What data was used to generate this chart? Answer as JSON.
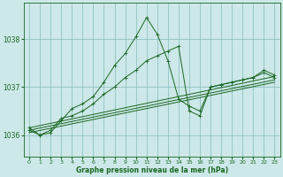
{
  "title": "Graphe pression niveau de la mer (hPa)",
  "background_color": "#cce8e8",
  "plot_bg_color": "#cce8e8",
  "grid_color": "#88bbbb",
  "line_color": "#1a6622",
  "xlim": [
    -0.5,
    23.5
  ],
  "ylim": [
    1035.55,
    1038.75
  ],
  "yticks": [
    1036,
    1037,
    1038
  ],
  "xticks": [
    0,
    1,
    2,
    3,
    4,
    5,
    6,
    7,
    8,
    9,
    10,
    11,
    12,
    13,
    14,
    15,
    16,
    17,
    18,
    19,
    20,
    21,
    22,
    23
  ],
  "series1_x": [
    0,
    1,
    2,
    3,
    4,
    5,
    6,
    7,
    8,
    9,
    10,
    11,
    12,
    13,
    14,
    15,
    16,
    17,
    18,
    19,
    20,
    21,
    22,
    23
  ],
  "series1_y": [
    1036.15,
    1036.0,
    1036.05,
    1036.3,
    1036.55,
    1036.65,
    1036.8,
    1037.1,
    1037.45,
    1037.7,
    1038.05,
    1038.45,
    1038.1,
    1037.55,
    1036.75,
    1036.6,
    1036.5,
    1037.0,
    1037.05,
    1037.1,
    1037.15,
    1037.2,
    1037.35,
    1037.25
  ],
  "series2_x": [
    0,
    1,
    2,
    3,
    4,
    5,
    6,
    7,
    8,
    9,
    10,
    11,
    12,
    13,
    14,
    15,
    16,
    17,
    18,
    19,
    20,
    21,
    22,
    23
  ],
  "series2_y": [
    1036.1,
    1036.0,
    1036.1,
    1036.35,
    1036.4,
    1036.5,
    1036.65,
    1036.85,
    1037.0,
    1037.2,
    1037.35,
    1037.55,
    1037.65,
    1037.75,
    1037.85,
    1036.5,
    1036.4,
    1037.0,
    1037.05,
    1037.1,
    1037.15,
    1037.2,
    1037.3,
    1037.2
  ],
  "trend1_x": [
    0,
    23
  ],
  "trend1_y": [
    1036.05,
    1037.1
  ],
  "trend2_x": [
    0,
    23
  ],
  "trend2_y": [
    1036.1,
    1037.15
  ],
  "trend3_x": [
    0,
    23
  ],
  "trend3_y": [
    1036.15,
    1037.22
  ]
}
